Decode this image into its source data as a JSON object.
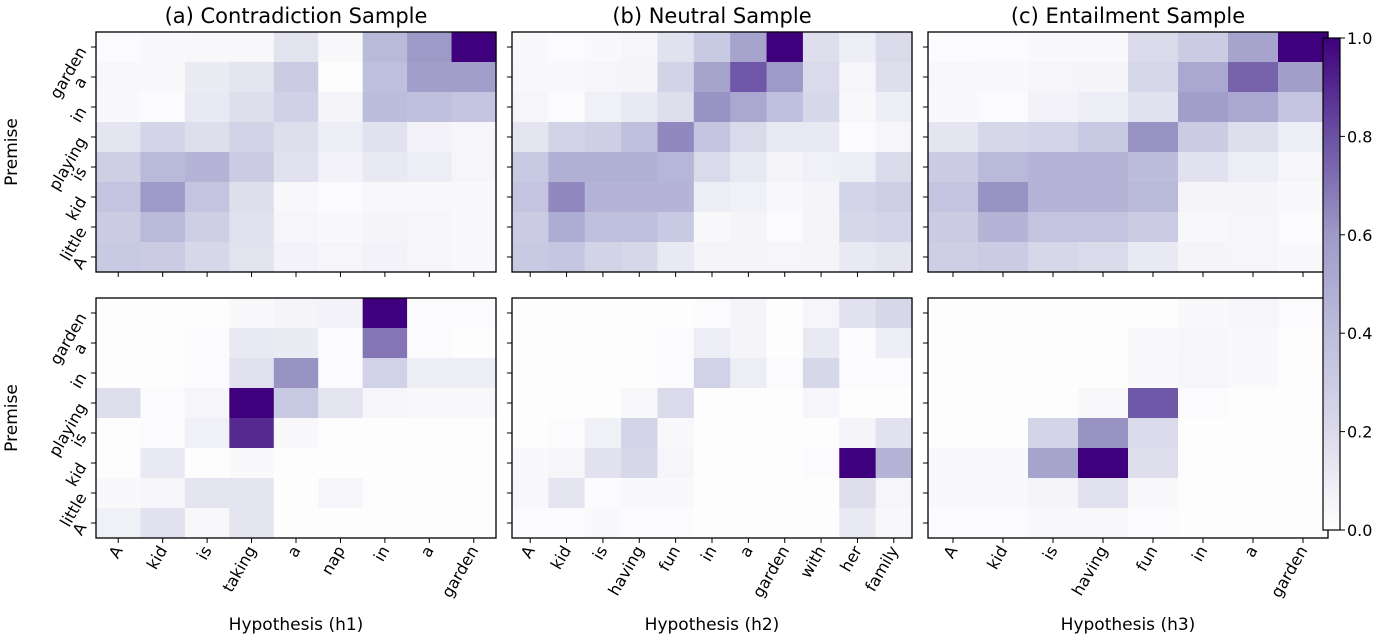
{
  "chart_data": {
    "type": "heatmap",
    "premise_tokens": [
      "A",
      "little",
      "kid",
      "is",
      "playing",
      "in",
      "a",
      "garden"
    ],
    "ylabel": "Premise",
    "colorscale": {
      "min_color": "#ffffff",
      "max_color": "#3f007d",
      "name": "Purples"
    },
    "colorbar": {
      "range": [
        0.0,
        1.0
      ],
      "ticks": [
        "0.0",
        "0.2",
        "0.4",
        "0.6",
        "0.8",
        "1.0"
      ]
    },
    "columns": [
      {
        "title": "(a) Contradiction Sample",
        "xlabel": "Hypothesis (h1)",
        "hypothesis_tokens": [
          "A",
          "kid",
          "is",
          "taking",
          "a",
          "nap",
          "in",
          "a",
          "garden"
        ]
      },
      {
        "title": "(b) Neutral Sample",
        "xlabel": "Hypothesis (h2)",
        "hypothesis_tokens": [
          "A",
          "kid",
          "is",
          "having",
          "fun",
          "in",
          "a",
          "garden",
          "with",
          "her",
          "family"
        ]
      },
      {
        "title": "(c) Entailment Sample",
        "xlabel": "Hypothesis (h3)",
        "hypothesis_tokens": [
          "A",
          "kid",
          "is",
          "having",
          "fun",
          "in",
          "a",
          "garden"
        ]
      }
    ],
    "panels": [
      {
        "row": 0,
        "col": 0,
        "values": [
          [
            0.02,
            0.03,
            0.04,
            0.04,
            0.15,
            0.04,
            0.42,
            0.6,
            1.0
          ],
          [
            0.04,
            0.03,
            0.11,
            0.14,
            0.3,
            0.01,
            0.38,
            0.58,
            0.58
          ],
          [
            0.03,
            0.02,
            0.12,
            0.18,
            0.27,
            0.06,
            0.4,
            0.38,
            0.35
          ],
          [
            0.14,
            0.24,
            0.18,
            0.25,
            0.18,
            0.1,
            0.16,
            0.07,
            0.05
          ],
          [
            0.28,
            0.42,
            0.45,
            0.3,
            0.16,
            0.07,
            0.12,
            0.1,
            0.05
          ],
          [
            0.35,
            0.6,
            0.35,
            0.18,
            0.04,
            0.02,
            0.04,
            0.04,
            0.03
          ],
          [
            0.3,
            0.42,
            0.28,
            0.16,
            0.05,
            0.03,
            0.06,
            0.05,
            0.03
          ],
          [
            0.32,
            0.3,
            0.22,
            0.15,
            0.07,
            0.05,
            0.07,
            0.05,
            0.03
          ]
        ]
      },
      {
        "row": 0,
        "col": 1,
        "values": [
          [
            0.03,
            0.02,
            0.03,
            0.05,
            0.16,
            0.32,
            0.55,
            1.0,
            0.18,
            0.09,
            0.2
          ],
          [
            0.04,
            0.03,
            0.05,
            0.06,
            0.25,
            0.55,
            0.78,
            0.6,
            0.2,
            0.05,
            0.18
          ],
          [
            0.05,
            0.02,
            0.08,
            0.12,
            0.18,
            0.62,
            0.52,
            0.38,
            0.22,
            0.04,
            0.09
          ],
          [
            0.14,
            0.25,
            0.28,
            0.38,
            0.65,
            0.35,
            0.2,
            0.12,
            0.12,
            0.02,
            0.05
          ],
          [
            0.32,
            0.48,
            0.48,
            0.48,
            0.44,
            0.2,
            0.12,
            0.06,
            0.08,
            0.1,
            0.2
          ],
          [
            0.35,
            0.65,
            0.45,
            0.45,
            0.45,
            0.1,
            0.08,
            0.04,
            0.06,
            0.24,
            0.28
          ],
          [
            0.3,
            0.5,
            0.38,
            0.38,
            0.32,
            0.04,
            0.06,
            0.02,
            0.06,
            0.22,
            0.24
          ],
          [
            0.32,
            0.34,
            0.25,
            0.22,
            0.12,
            0.06,
            0.06,
            0.05,
            0.06,
            0.12,
            0.14
          ]
        ]
      },
      {
        "row": 0,
        "col": 2,
        "values": [
          [
            0.02,
            0.02,
            0.03,
            0.03,
            0.2,
            0.3,
            0.55,
            1.0
          ],
          [
            0.04,
            0.03,
            0.05,
            0.06,
            0.22,
            0.52,
            0.75,
            0.58
          ],
          [
            0.03,
            0.02,
            0.07,
            0.1,
            0.16,
            0.58,
            0.52,
            0.35
          ],
          [
            0.14,
            0.22,
            0.24,
            0.32,
            0.62,
            0.3,
            0.18,
            0.1
          ],
          [
            0.3,
            0.42,
            0.45,
            0.45,
            0.4,
            0.16,
            0.1,
            0.05
          ],
          [
            0.35,
            0.62,
            0.45,
            0.45,
            0.42,
            0.06,
            0.06,
            0.03
          ],
          [
            0.3,
            0.45,
            0.35,
            0.35,
            0.3,
            0.04,
            0.05,
            0.02
          ],
          [
            0.28,
            0.3,
            0.22,
            0.2,
            0.12,
            0.06,
            0.05,
            0.03
          ]
        ]
      },
      {
        "row": 1,
        "col": 0,
        "values": [
          [
            0.01,
            0.01,
            0.01,
            0.03,
            0.06,
            0.07,
            1.0,
            0.02,
            0.02
          ],
          [
            0.01,
            0.01,
            0.02,
            0.12,
            0.11,
            0.02,
            0.7,
            0.02,
            0.01
          ],
          [
            0.01,
            0.01,
            0.02,
            0.16,
            0.62,
            0.02,
            0.26,
            0.1,
            0.1
          ],
          [
            0.18,
            0.02,
            0.05,
            1.0,
            0.32,
            0.14,
            0.05,
            0.04,
            0.04
          ],
          [
            0.01,
            0.02,
            0.08,
            0.9,
            0.04,
            0.01,
            0.01,
            0.01,
            0.01
          ],
          [
            0.01,
            0.12,
            0.01,
            0.03,
            0.01,
            0.01,
            0.01,
            0.01,
            0.01
          ],
          [
            0.03,
            0.05,
            0.14,
            0.14,
            0.01,
            0.05,
            0.01,
            0.01,
            0.01
          ],
          [
            0.08,
            0.16,
            0.04,
            0.14,
            0.01,
            0.01,
            0.01,
            0.01,
            0.01
          ]
        ]
      },
      {
        "row": 1,
        "col": 1,
        "values": [
          [
            0.01,
            0.01,
            0.01,
            0.01,
            0.01,
            0.02,
            0.06,
            0.01,
            0.05,
            0.16,
            0.22
          ],
          [
            0.01,
            0.01,
            0.01,
            0.01,
            0.02,
            0.1,
            0.06,
            0.01,
            0.12,
            0.02,
            0.09
          ],
          [
            0.01,
            0.01,
            0.01,
            0.01,
            0.02,
            0.26,
            0.1,
            0.02,
            0.22,
            0.02,
            0.02
          ],
          [
            0.01,
            0.01,
            0.01,
            0.04,
            0.2,
            0.01,
            0.01,
            0.01,
            0.05,
            0.01,
            0.01
          ],
          [
            0.01,
            0.02,
            0.08,
            0.24,
            0.04,
            0.01,
            0.01,
            0.01,
            0.01,
            0.06,
            0.16
          ],
          [
            0.03,
            0.05,
            0.16,
            0.22,
            0.05,
            0.01,
            0.01,
            0.01,
            0.02,
            1.0,
            0.45
          ],
          [
            0.04,
            0.14,
            0.02,
            0.03,
            0.03,
            0.01,
            0.01,
            0.01,
            0.01,
            0.18,
            0.05
          ],
          [
            0.02,
            0.02,
            0.03,
            0.02,
            0.02,
            0.01,
            0.01,
            0.01,
            0.01,
            0.12,
            0.04
          ]
        ]
      },
      {
        "row": 1,
        "col": 2,
        "values": [
          [
            0.01,
            0.01,
            0.01,
            0.01,
            0.01,
            0.03,
            0.05,
            0.02
          ],
          [
            0.01,
            0.01,
            0.01,
            0.01,
            0.04,
            0.05,
            0.03,
            0.01
          ],
          [
            0.01,
            0.01,
            0.01,
            0.01,
            0.03,
            0.05,
            0.03,
            0.01
          ],
          [
            0.01,
            0.01,
            0.01,
            0.04,
            0.78,
            0.02,
            0.01,
            0.01
          ],
          [
            0.01,
            0.01,
            0.24,
            0.62,
            0.2,
            0.01,
            0.01,
            0.01
          ],
          [
            0.03,
            0.03,
            0.55,
            1.0,
            0.18,
            0.01,
            0.01,
            0.01
          ],
          [
            0.03,
            0.03,
            0.06,
            0.16,
            0.04,
            0.01,
            0.01,
            0.01
          ],
          [
            0.02,
            0.02,
            0.04,
            0.04,
            0.02,
            0.01,
            0.01,
            0.01
          ]
        ]
      }
    ]
  }
}
